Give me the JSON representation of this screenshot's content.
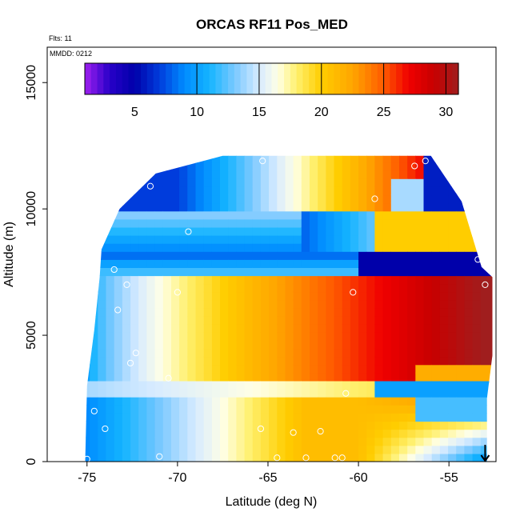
{
  "chart_data": {
    "type": "heatmap",
    "title": "ORCAS RF11 Pos_MED",
    "xlabel": "Latitude (deg N)",
    "ylabel": "Altitude (m)",
    "xlim": [
      -77.2,
      -52.4
    ],
    "ylim": [
      0,
      16400
    ],
    "xticks": [
      -75,
      -70,
      -65,
      -60,
      -55
    ],
    "yticks": [
      0,
      5000,
      10000,
      15000
    ],
    "flights_note": "Flts: 11",
    "date_note": "MMDD: 0212",
    "colorbar": {
      "range": [
        1,
        31
      ],
      "ticks": [
        5,
        10,
        15,
        20,
        25,
        30
      ],
      "divisions": [
        10,
        15,
        20,
        25,
        30
      ]
    },
    "field_description_points": [
      {
        "lat": -75,
        "alt": 500,
        "value": 9
      },
      {
        "lat": -70,
        "alt": 1000,
        "value": 14
      },
      {
        "lat": -65,
        "alt": 1000,
        "value": 20
      },
      {
        "lat": -60,
        "alt": 1000,
        "value": 21
      },
      {
        "lat": -74,
        "alt": 4000,
        "value": 10
      },
      {
        "lat": -70,
        "alt": 4500,
        "value": 14
      },
      {
        "lat": -65,
        "alt": 5000,
        "value": 22
      },
      {
        "lat": -60,
        "alt": 5000,
        "value": 27
      },
      {
        "lat": -55,
        "alt": 5000,
        "value": 31
      },
      {
        "lat": -55,
        "alt": 2200,
        "value": 24
      },
      {
        "lat": -57,
        "alt": 2900,
        "value": 10
      },
      {
        "lat": -70,
        "alt": 8000,
        "value": 8
      },
      {
        "lat": -60,
        "alt": 8500,
        "value": 5
      },
      {
        "lat": -62,
        "alt": 10500,
        "value": 14
      },
      {
        "lat": -60,
        "alt": 11500,
        "value": 27
      },
      {
        "lat": -70,
        "alt": 11000,
        "value": 6
      }
    ],
    "observation_markers": [
      {
        "lat": -75.0,
        "alt": 100
      },
      {
        "lat": -74.6,
        "alt": 2000
      },
      {
        "lat": -74.0,
        "alt": 1300
      },
      {
        "lat": -73.3,
        "alt": 6000
      },
      {
        "lat": -72.6,
        "alt": 3900
      },
      {
        "lat": -72.3,
        "alt": 4300
      },
      {
        "lat": -72.8,
        "alt": 7000
      },
      {
        "lat": -73.5,
        "alt": 7600
      },
      {
        "lat": -71.5,
        "alt": 10900
      },
      {
        "lat": -70.0,
        "alt": 6700
      },
      {
        "lat": -70.5,
        "alt": 3300
      },
      {
        "lat": -69.4,
        "alt": 9100
      },
      {
        "lat": -71.0,
        "alt": 200
      },
      {
        "lat": -65.4,
        "alt": 1300
      },
      {
        "lat": -64.5,
        "alt": 150
      },
      {
        "lat": -63.6,
        "alt": 1150
      },
      {
        "lat": -62.9,
        "alt": 150
      },
      {
        "lat": -62.1,
        "alt": 1200
      },
      {
        "lat": -61.3,
        "alt": 150
      },
      {
        "lat": -60.9,
        "alt": 150
      },
      {
        "lat": -60.7,
        "alt": 2700
      },
      {
        "lat": -60.3,
        "alt": 6700
      },
      {
        "lat": -59.1,
        "alt": 10400
      },
      {
        "lat": -65.3,
        "alt": 11900
      },
      {
        "lat": -56.9,
        "alt": 11700
      },
      {
        "lat": -56.3,
        "alt": 11900
      },
      {
        "lat": -53.4,
        "alt": 8000
      },
      {
        "lat": -53.0,
        "alt": 7000
      },
      {
        "lat": -52.5,
        "alt": 3700
      },
      {
        "lat": -52.5,
        "alt": 2800
      }
    ],
    "arrow_marker": {
      "lat": -53.0
    }
  }
}
